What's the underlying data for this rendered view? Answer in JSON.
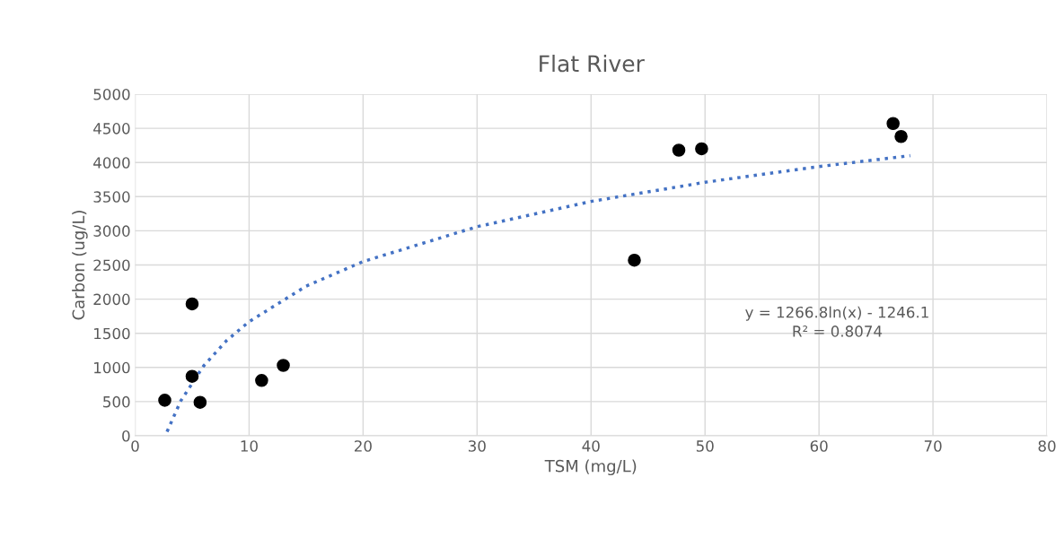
{
  "chart_data": {
    "type": "scatter",
    "title": "Flat River",
    "xlabel": "TSM (mg/L)",
    "ylabel": "Carbon (ug/L)",
    "xlim": [
      0,
      80
    ],
    "xticks": [
      0,
      10,
      20,
      30,
      40,
      50,
      60,
      70,
      80
    ],
    "ylim": [
      0,
      5000
    ],
    "yticks": [
      0,
      500,
      1000,
      1500,
      2000,
      2500,
      3000,
      3500,
      4000,
      4500,
      5000
    ],
    "grid": true,
    "series": [
      {
        "color": "#000000",
        "marker": "circle",
        "x": [
          2.6,
          5.0,
          5.0,
          5.7,
          11.1,
          13.0,
          43.8,
          47.7,
          49.7,
          66.5,
          67.2
        ],
        "values": [
          520,
          1930,
          870,
          490,
          810,
          1030,
          2570,
          4180,
          4200,
          4570,
          4380
        ]
      },
      {
        "type": "line",
        "color": "#4472c4",
        "line_style": "dotted",
        "marker": "none",
        "x": [
          2.8,
          4,
          6,
          8,
          10,
          15,
          20,
          30,
          40,
          50,
          60,
          68
        ],
        "values": [
          60,
          510,
          1020,
          1390,
          1670,
          2190,
          2550,
          3060,
          3430,
          3710,
          3940,
          4100
        ]
      }
    ],
    "annotations": [
      "y = 1266.8ln(x) - 1246.1\nR² = 0.8074"
    ]
  }
}
